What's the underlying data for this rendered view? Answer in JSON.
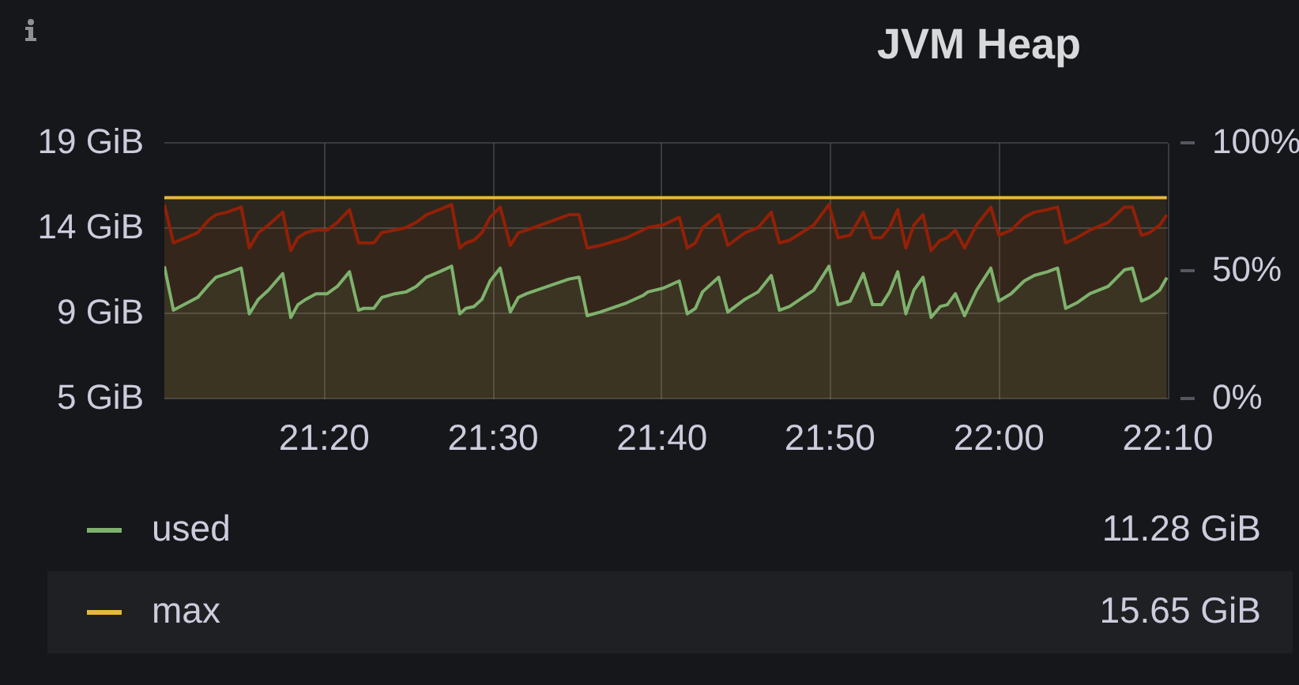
{
  "chart_data": {
    "type": "area",
    "title": "JVM Heap",
    "xlim": [
      21.175,
      22.167
    ],
    "xticks": [
      {
        "value": 21.333,
        "label": "21:20"
      },
      {
        "value": 21.5,
        "label": "21:30"
      },
      {
        "value": 21.667,
        "label": "21:40"
      },
      {
        "value": 21.833,
        "label": "21:50"
      },
      {
        "value": 22,
        "label": "22:00"
      },
      {
        "value": 22.167,
        "label": "22:10"
      }
    ],
    "ylim": [
      4.657,
      18.626
    ],
    "yticks": [
      {
        "value": 4.657,
        "label": "5 GiB"
      },
      {
        "value": 9.313,
        "label": "9 GiB"
      },
      {
        "value": 13.97,
        "label": "14 GiB"
      },
      {
        "value": 18.626,
        "label": "19 GiB"
      }
    ],
    "y2lim": [
      0,
      100
    ],
    "y2ticks": [
      {
        "value": 0,
        "label": "0%"
      },
      {
        "value": 50,
        "label": "50%"
      },
      {
        "value": 100,
        "label": "100%"
      }
    ],
    "grid": true,
    "legend": "bottom",
    "x": [
      21.175,
      21.184,
      21.208,
      21.219,
      21.226,
      21.237,
      21.251,
      21.259,
      21.268,
      21.278,
      21.292,
      21.3,
      21.307,
      21.315,
      21.325,
      21.336,
      21.346,
      21.358,
      21.367,
      21.372,
      21.382,
      21.39,
      21.403,
      21.414,
      21.424,
      21.434,
      21.447,
      21.459,
      21.467,
      21.473,
      21.481,
      21.489,
      21.497,
      21.507,
      21.517,
      21.525,
      21.533,
      21.554,
      21.575,
      21.585,
      21.593,
      21.606,
      21.632,
      21.648,
      21.653,
      21.668,
      21.684,
      21.692,
      21.7,
      21.707,
      21.723,
      21.732,
      21.749,
      21.762,
      21.775,
      21.783,
      21.793,
      21.817,
      21.832,
      21.841,
      21.853,
      21.866,
      21.875,
      21.884,
      21.892,
      21.9,
      21.908,
      21.916,
      21.925,
      21.933,
      21.942,
      21.949,
      21.957,
      21.966,
      21.978,
      21.992,
      22.0,
      22.012,
      22.025,
      22.035,
      22.048,
      22.058,
      22.066,
      22.077,
      22.09,
      22.108,
      22.124,
      22.132,
      22.141,
      22.149,
      22.159,
      22.166
    ],
    "series": [
      {
        "name": "used",
        "color": "#7eb26d",
        "values": [
          11.9,
          9.5,
          10.2,
          10.9,
          11.3,
          11.5,
          11.8,
          9.3,
          10.1,
          10.6,
          11.5,
          9.1,
          9.8,
          10.1,
          10.4,
          10.4,
          10.8,
          11.6,
          9.5,
          9.6,
          9.6,
          10.2,
          10.4,
          10.5,
          10.8,
          11.3,
          11.6,
          11.9,
          9.3,
          9.6,
          9.7,
          10.1,
          11.1,
          11.8,
          9.4,
          10.2,
          10.4,
          10.8,
          11.2,
          11.3,
          9.2,
          9.4,
          9.9,
          10.3,
          10.5,
          10.7,
          11.1,
          9.3,
          9.6,
          10.5,
          11.3,
          9.4,
          10.1,
          10.5,
          11.4,
          9.5,
          9.7,
          10.6,
          11.9,
          9.8,
          10.0,
          11.5,
          9.8,
          9.8,
          10.5,
          11.6,
          9.3,
          10.6,
          11.3,
          9.1,
          9.7,
          9.8,
          10.4,
          9.2,
          10.6,
          11.8,
          10.0,
          10.4,
          11.1,
          11.4,
          11.6,
          11.8,
          9.6,
          9.9,
          10.4,
          10.8,
          11.7,
          11.8,
          10.0,
          10.2,
          10.6,
          11.28
        ]
      },
      {
        "name": "max",
        "color": "#eab839",
        "x": [
          21.175,
          22.166
        ],
        "values": [
          15.65,
          15.65
        ]
      },
      {
        "color": "#890f02",
        "axis": "y2",
        "values": [
          76,
          61,
          65,
          70,
          72,
          73,
          75,
          59,
          65,
          68,
          73,
          58,
          63,
          65,
          66,
          66,
          69,
          74,
          61,
          61,
          61,
          65,
          66,
          67,
          69,
          72,
          74,
          76,
          59,
          61,
          62,
          65,
          71,
          75,
          60,
          65,
          66,
          69,
          72,
          72,
          59,
          60,
          63,
          66,
          67,
          68,
          71,
          59,
          61,
          67,
          72,
          60,
          65,
          67,
          73,
          61,
          62,
          68,
          76,
          63,
          64,
          73,
          63,
          63,
          67,
          74,
          59,
          68,
          72,
          58,
          62,
          63,
          66,
          59,
          68,
          75,
          64,
          66,
          71,
          73,
          74,
          75,
          61,
          63,
          66,
          69,
          75,
          75,
          64,
          65,
          68,
          72
        ]
      }
    ],
    "annotations": [
      "11.28 GiB",
      "15.65 GiB"
    ]
  }
}
